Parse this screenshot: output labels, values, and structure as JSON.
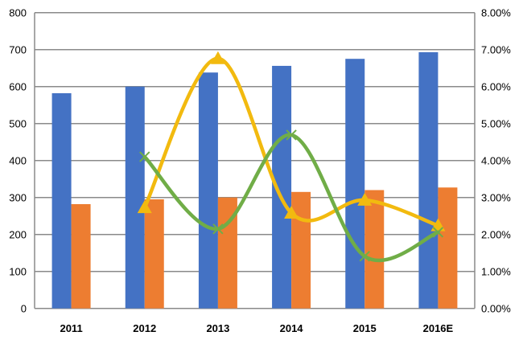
{
  "chart_data": {
    "type": "bar",
    "categories": [
      "2011",
      "2012",
      "2013",
      "2014",
      "2015",
      "2016E"
    ],
    "series": [
      {
        "kind": "bar",
        "axis": "left",
        "color": "#4472C4",
        "values": [
          582,
          600,
          638,
          656,
          675,
          693
        ]
      },
      {
        "kind": "bar",
        "axis": "left",
        "color": "#ED7D31",
        "values": [
          282,
          295,
          300,
          315,
          320,
          327
        ]
      },
      {
        "kind": "line",
        "axis": "right",
        "color": "#F2BA0F",
        "marker": "triangle",
        "smooth": true,
        "values": [
          null,
          0.0273,
          0.0676,
          0.0258,
          0.0293,
          0.0224
        ]
      },
      {
        "kind": "line",
        "axis": "right",
        "color": "#70AD47",
        "marker": "x",
        "smooth": true,
        "values": [
          null,
          0.041,
          0.0215,
          0.0469,
          0.0141,
          0.0206
        ]
      }
    ],
    "left_axis": {
      "ylim": [
        0,
        800
      ],
      "ticks": [
        "0",
        "100",
        "200",
        "300",
        "400",
        "500",
        "600",
        "700",
        "800"
      ]
    },
    "right_axis": {
      "ylim": [
        0,
        0.08
      ],
      "ticks": [
        "0.00%",
        "1.00%",
        "2.00%",
        "3.00%",
        "4.00%",
        "5.00%",
        "6.00%",
        "7.00%",
        "8.00%"
      ]
    },
    "grid": true,
    "title": "",
    "xlabel": "",
    "ylabel": ""
  }
}
